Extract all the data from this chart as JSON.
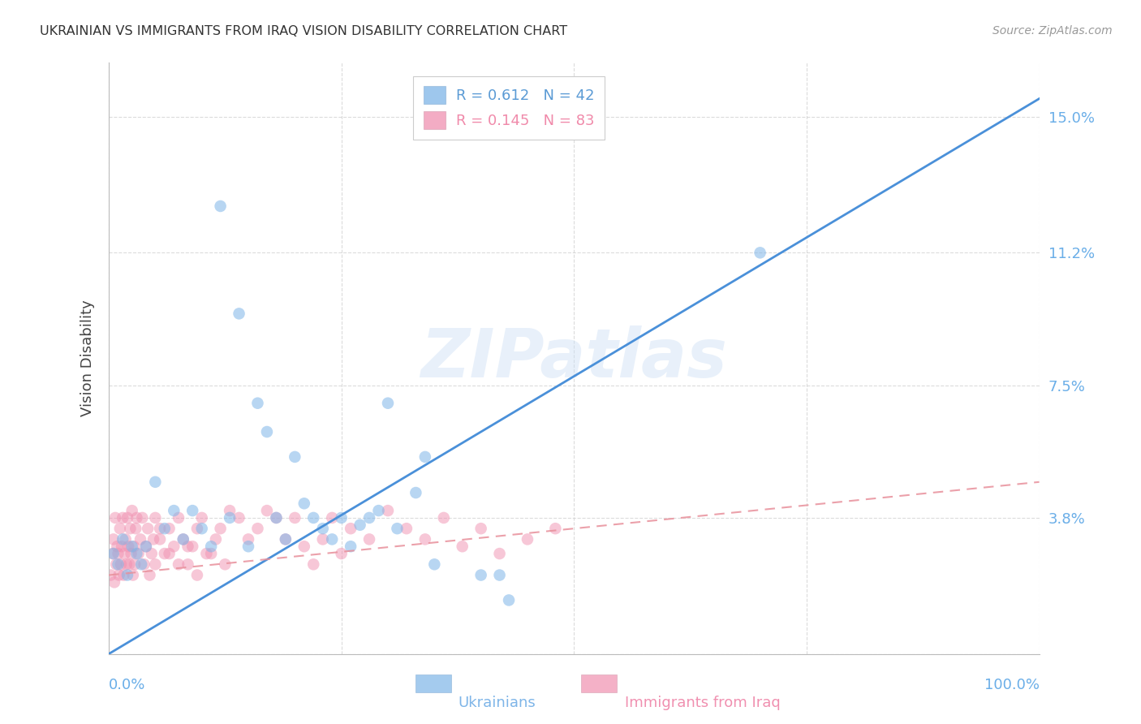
{
  "title": "UKRAINIAN VS IMMIGRANTS FROM IRAQ VISION DISABILITY CORRELATION CHART",
  "source": "Source: ZipAtlas.com",
  "ylabel": "Vision Disability",
  "yticks": [
    0.0,
    0.038,
    0.075,
    0.112,
    0.15
  ],
  "ytick_labels": [
    "",
    "3.8%",
    "7.5%",
    "11.2%",
    "15.0%"
  ],
  "xlim": [
    0.0,
    1.0
  ],
  "ylim": [
    0.0,
    0.165
  ],
  "legend_entries": [
    {
      "label": "R = 0.612   N = 42",
      "color": "#5b9bd5"
    },
    {
      "label": "R = 0.145   N = 83",
      "color": "#f08aaa"
    }
  ],
  "watermark_text": "ZIPatlas",
  "background_color": "#ffffff",
  "scatter_blue_color": "#7eb5e8",
  "scatter_pink_color": "#f090b0",
  "line_blue_color": "#4a90d9",
  "line_pink_color": "#e8909b",
  "tick_label_color": "#6aaee8",
  "grid_color": "#cccccc",
  "blue_line_x": [
    0.0,
    1.0
  ],
  "blue_line_y": [
    0.0,
    0.155
  ],
  "pink_line_x": [
    0.0,
    1.0
  ],
  "pink_line_y": [
    0.022,
    0.048
  ],
  "blue_scatter": [
    [
      0.005,
      0.028
    ],
    [
      0.01,
      0.025
    ],
    [
      0.015,
      0.032
    ],
    [
      0.02,
      0.022
    ],
    [
      0.025,
      0.03
    ],
    [
      0.03,
      0.028
    ],
    [
      0.035,
      0.025
    ],
    [
      0.04,
      0.03
    ],
    [
      0.05,
      0.048
    ],
    [
      0.06,
      0.035
    ],
    [
      0.07,
      0.04
    ],
    [
      0.08,
      0.032
    ],
    [
      0.09,
      0.04
    ],
    [
      0.1,
      0.035
    ],
    [
      0.11,
      0.03
    ],
    [
      0.12,
      0.125
    ],
    [
      0.13,
      0.038
    ],
    [
      0.14,
      0.095
    ],
    [
      0.15,
      0.03
    ],
    [
      0.16,
      0.07
    ],
    [
      0.17,
      0.062
    ],
    [
      0.18,
      0.038
    ],
    [
      0.19,
      0.032
    ],
    [
      0.2,
      0.055
    ],
    [
      0.21,
      0.042
    ],
    [
      0.22,
      0.038
    ],
    [
      0.23,
      0.035
    ],
    [
      0.24,
      0.032
    ],
    [
      0.25,
      0.038
    ],
    [
      0.26,
      0.03
    ],
    [
      0.27,
      0.036
    ],
    [
      0.28,
      0.038
    ],
    [
      0.29,
      0.04
    ],
    [
      0.3,
      0.07
    ],
    [
      0.31,
      0.035
    ],
    [
      0.33,
      0.045
    ],
    [
      0.34,
      0.055
    ],
    [
      0.35,
      0.025
    ],
    [
      0.4,
      0.022
    ],
    [
      0.42,
      0.022
    ],
    [
      0.43,
      0.015
    ],
    [
      0.7,
      0.112
    ]
  ],
  "pink_scatter": [
    [
      0.002,
      0.022
    ],
    [
      0.004,
      0.028
    ],
    [
      0.005,
      0.032
    ],
    [
      0.006,
      0.02
    ],
    [
      0.007,
      0.038
    ],
    [
      0.008,
      0.025
    ],
    [
      0.009,
      0.03
    ],
    [
      0.01,
      0.028
    ],
    [
      0.011,
      0.022
    ],
    [
      0.012,
      0.035
    ],
    [
      0.013,
      0.025
    ],
    [
      0.014,
      0.03
    ],
    [
      0.015,
      0.038
    ],
    [
      0.016,
      0.022
    ],
    [
      0.017,
      0.028
    ],
    [
      0.018,
      0.032
    ],
    [
      0.019,
      0.025
    ],
    [
      0.02,
      0.038
    ],
    [
      0.021,
      0.03
    ],
    [
      0.022,
      0.025
    ],
    [
      0.023,
      0.035
    ],
    [
      0.024,
      0.028
    ],
    [
      0.025,
      0.04
    ],
    [
      0.026,
      0.022
    ],
    [
      0.027,
      0.03
    ],
    [
      0.028,
      0.025
    ],
    [
      0.029,
      0.035
    ],
    [
      0.03,
      0.038
    ],
    [
      0.032,
      0.028
    ],
    [
      0.034,
      0.032
    ],
    [
      0.036,
      0.038
    ],
    [
      0.038,
      0.025
    ],
    [
      0.04,
      0.03
    ],
    [
      0.042,
      0.035
    ],
    [
      0.044,
      0.022
    ],
    [
      0.046,
      0.028
    ],
    [
      0.048,
      0.032
    ],
    [
      0.05,
      0.038
    ],
    [
      0.055,
      0.032
    ],
    [
      0.06,
      0.028
    ],
    [
      0.065,
      0.035
    ],
    [
      0.07,
      0.03
    ],
    [
      0.075,
      0.038
    ],
    [
      0.08,
      0.032
    ],
    [
      0.085,
      0.025
    ],
    [
      0.09,
      0.03
    ],
    [
      0.095,
      0.035
    ],
    [
      0.1,
      0.038
    ],
    [
      0.11,
      0.028
    ],
    [
      0.12,
      0.035
    ],
    [
      0.13,
      0.04
    ],
    [
      0.14,
      0.038
    ],
    [
      0.15,
      0.032
    ],
    [
      0.16,
      0.035
    ],
    [
      0.17,
      0.04
    ],
    [
      0.18,
      0.038
    ],
    [
      0.19,
      0.032
    ],
    [
      0.2,
      0.038
    ],
    [
      0.21,
      0.03
    ],
    [
      0.22,
      0.025
    ],
    [
      0.23,
      0.032
    ],
    [
      0.24,
      0.038
    ],
    [
      0.25,
      0.028
    ],
    [
      0.26,
      0.035
    ],
    [
      0.28,
      0.032
    ],
    [
      0.3,
      0.04
    ],
    [
      0.32,
      0.035
    ],
    [
      0.34,
      0.032
    ],
    [
      0.36,
      0.038
    ],
    [
      0.38,
      0.03
    ],
    [
      0.4,
      0.035
    ],
    [
      0.42,
      0.028
    ],
    [
      0.45,
      0.032
    ],
    [
      0.48,
      0.035
    ],
    [
      0.05,
      0.025
    ],
    [
      0.055,
      0.035
    ],
    [
      0.065,
      0.028
    ],
    [
      0.075,
      0.025
    ],
    [
      0.085,
      0.03
    ],
    [
      0.095,
      0.022
    ],
    [
      0.105,
      0.028
    ],
    [
      0.115,
      0.032
    ],
    [
      0.125,
      0.025
    ]
  ]
}
